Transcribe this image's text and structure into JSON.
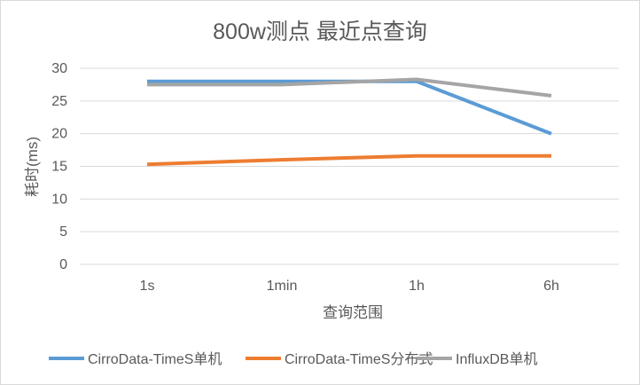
{
  "chart_data": {
    "type": "line",
    "title": "800w测点 最近点查询",
    "xlabel": "查询范围",
    "ylabel": "耗时(ms)",
    "categories": [
      "1s",
      "1min",
      "1h",
      "6h"
    ],
    "ylim": [
      0,
      30
    ],
    "yticks": [
      "0",
      "5",
      "10",
      "15",
      "20",
      "25",
      "30"
    ],
    "grid": true,
    "legend_position": "bottom",
    "series": [
      {
        "name": "CirroData-TimeS单机",
        "color": "#5b9bd5",
        "values": [
          28.0,
          28.0,
          28.0,
          20.0
        ]
      },
      {
        "name": "CirroData-TimeS分布式",
        "color": "#ed7d31",
        "values": [
          15.3,
          16.0,
          16.6,
          16.6
        ]
      },
      {
        "name": "InfluxDB单机",
        "color": "#a5a5a5",
        "values": [
          27.5,
          27.5,
          28.3,
          25.8
        ]
      }
    ]
  }
}
